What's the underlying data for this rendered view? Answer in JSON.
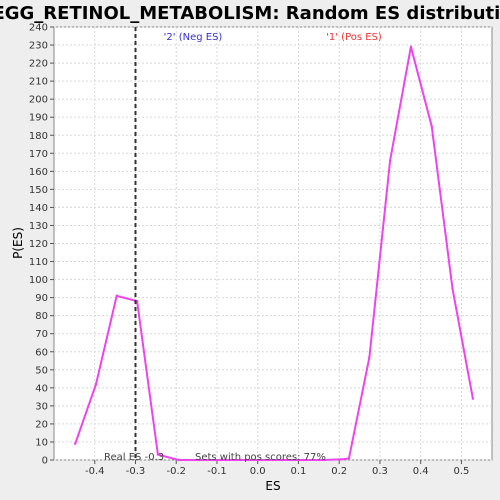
{
  "chart_data": {
    "type": "line",
    "title": "KEGG_RETINOL_METABOLISM: Random ES distribution",
    "xlabel": "ES",
    "ylabel": "P(ES)",
    "xlim": [
      -0.5,
      0.575
    ],
    "ylim": [
      0,
      240
    ],
    "x_ticks": [
      -0.4,
      -0.3,
      -0.2,
      -0.1,
      0.0,
      0.1,
      0.2,
      0.3,
      0.4,
      0.5
    ],
    "x_tick_labels": [
      "-0.4",
      "-0.3",
      "-0.2",
      "-0.1",
      "0.0",
      "0.1",
      "0.2",
      "0.3",
      "0.4",
      "0.5"
    ],
    "y_ticks": [
      0,
      10,
      20,
      30,
      40,
      50,
      60,
      70,
      80,
      90,
      100,
      110,
      120,
      130,
      140,
      150,
      160,
      170,
      180,
      190,
      200,
      210,
      220,
      230,
      240
    ],
    "grid": true,
    "series": [
      {
        "color": "#ee44ee",
        "x": [
          -0.448,
          -0.397,
          -0.346,
          -0.296,
          -0.245,
          -0.194,
          -0.143,
          -0.092,
          -0.041,
          0.01,
          0.061,
          0.112,
          0.163,
          0.214,
          0.224,
          0.274,
          0.325,
          0.376,
          0.427,
          0.478,
          0.528
        ],
        "y": [
          9,
          42,
          91,
          88,
          3,
          0,
          0,
          0,
          0,
          0,
          0,
          0,
          0,
          0.5,
          1,
          57,
          166,
          229,
          185,
          95,
          34
        ]
      }
    ],
    "real_es": -0.3,
    "annotations": {
      "neg_label": "'2' (Neg ES)",
      "pos_label": "'1' (Pos ES)",
      "real_es_label": "Real ES -0.3",
      "pos_scores_label": "Sets with pos scores: 77%"
    },
    "colors": {
      "neg": "#3333cc",
      "pos": "#ee3333",
      "line": "#ee44ee",
      "real_es_line": "#333333"
    }
  }
}
